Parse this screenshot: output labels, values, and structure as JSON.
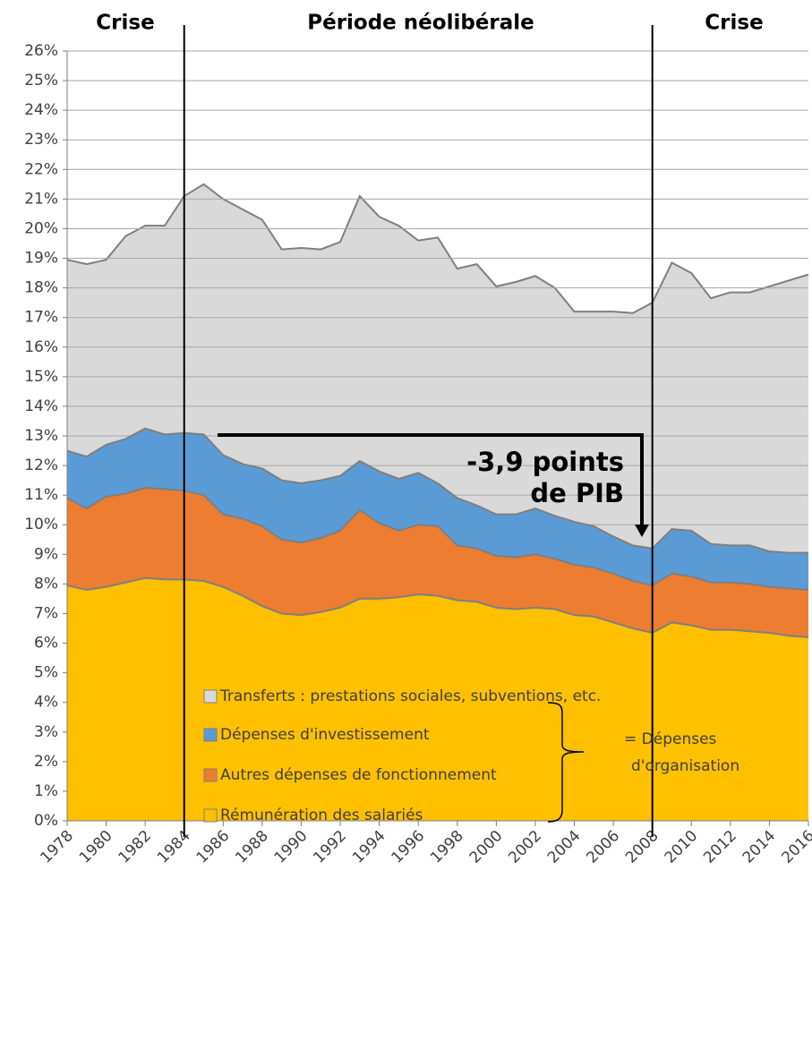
{
  "chart_data": {
    "type": "stacked_area",
    "x": [
      1978,
      1979,
      1980,
      1981,
      1982,
      1983,
      1984,
      1985,
      1986,
      1987,
      1988,
      1989,
      1990,
      1991,
      1992,
      1993,
      1994,
      1995,
      1996,
      1997,
      1998,
      1999,
      2000,
      2001,
      2002,
      2003,
      2004,
      2005,
      2006,
      2007,
      2008,
      2009,
      2010,
      2011,
      2012,
      2013,
      2014,
      2015,
      2016
    ],
    "series": [
      {
        "name": "Rémunération des salariés",
        "color": "#ffc000",
        "values": [
          7.95,
          7.8,
          7.9,
          8.05,
          8.2,
          8.15,
          8.15,
          8.1,
          7.9,
          7.6,
          7.25,
          7.0,
          6.95,
          7.05,
          7.2,
          7.5,
          7.5,
          7.55,
          7.65,
          7.6,
          7.45,
          7.4,
          7.2,
          7.15,
          7.2,
          7.15,
          6.95,
          6.9,
          6.7,
          6.5,
          6.35,
          6.7,
          6.6,
          6.45,
          6.45,
          6.4,
          6.35,
          6.25,
          6.2
        ]
      },
      {
        "name": "Autres dépenses de fonctionnement",
        "color": "#ed7d31",
        "values": [
          2.95,
          2.75,
          3.05,
          3.0,
          3.05,
          3.05,
          3.0,
          2.9,
          2.45,
          2.6,
          2.7,
          2.5,
          2.45,
          2.5,
          2.6,
          3.0,
          2.55,
          2.25,
          2.35,
          2.35,
          1.85,
          1.8,
          1.75,
          1.75,
          1.8,
          1.7,
          1.7,
          1.65,
          1.65,
          1.6,
          1.6,
          1.65,
          1.65,
          1.6,
          1.6,
          1.6,
          1.55,
          1.6,
          1.6
        ]
      },
      {
        "name": "Dépenses d'investissement",
        "color": "#5b9bd5",
        "values": [
          1.6,
          1.75,
          1.75,
          1.85,
          2.0,
          1.85,
          1.95,
          2.05,
          2.0,
          1.85,
          1.95,
          2.0,
          2.0,
          1.95,
          1.85,
          1.65,
          1.75,
          1.75,
          1.75,
          1.45,
          1.6,
          1.45,
          1.4,
          1.45,
          1.55,
          1.45,
          1.45,
          1.4,
          1.25,
          1.2,
          1.25,
          1.5,
          1.55,
          1.3,
          1.25,
          1.3,
          1.2,
          1.2,
          1.25
        ]
      },
      {
        "name": "Transferts : prestations sociales, subventions, etc.",
        "color": "#d9d9d9",
        "values": [
          6.45,
          6.5,
          6.25,
          6.85,
          6.85,
          7.05,
          8.0,
          8.45,
          8.65,
          8.6,
          8.4,
          7.8,
          7.95,
          7.8,
          7.9,
          8.95,
          8.6,
          8.55,
          7.85,
          8.3,
          7.75,
          8.15,
          7.7,
          7.85,
          7.85,
          7.7,
          7.1,
          7.25,
          7.6,
          7.85,
          8.3,
          9.0,
          8.7,
          8.3,
          8.55,
          8.55,
          8.95,
          9.2,
          9.4
        ]
      }
    ],
    "xlim": [
      1978,
      2016
    ],
    "xticks": [
      1978,
      1980,
      1982,
      1984,
      1986,
      1988,
      1990,
      1992,
      1994,
      1996,
      1998,
      2000,
      2002,
      2004,
      2006,
      2008,
      2010,
      2012,
      2014,
      2016
    ],
    "ylim": [
      0,
      26
    ],
    "yticks": [
      {
        "value": 0,
        "label": "0%"
      },
      {
        "value": 1,
        "label": "1%"
      },
      {
        "value": 2,
        "label": "2%"
      },
      {
        "value": 3,
        "label": "3%"
      },
      {
        "value": 4,
        "label": "4%"
      },
      {
        "value": 5,
        "label": "5%"
      },
      {
        "value": 6,
        "label": "6%"
      },
      {
        "value": 7,
        "label": "7%"
      },
      {
        "value": 8,
        "label": "8%"
      },
      {
        "value": 9,
        "label": "9%"
      },
      {
        "value": 10,
        "label": "10%"
      },
      {
        "value": 11,
        "label": "11%"
      },
      {
        "value": 12,
        "label": "12%"
      },
      {
        "value": 13,
        "label": "13%"
      },
      {
        "value": 14,
        "label": "14%"
      },
      {
        "value": 15,
        "label": "15%"
      },
      {
        "value": 16,
        "label": "16%"
      },
      {
        "value": 17,
        "label": "17%"
      },
      {
        "value": 18,
        "label": "18%"
      },
      {
        "value": 19,
        "label": "19%"
      },
      {
        "value": 20,
        "label": "20%"
      },
      {
        "value": 21,
        "label": "21%"
      },
      {
        "value": 22,
        "label": "22%"
      },
      {
        "value": 23,
        "label": "23%"
      },
      {
        "value": 24,
        "label": "24%"
      },
      {
        "value": 25,
        "label": "25%"
      },
      {
        "value": 26,
        "label": "26%"
      }
    ],
    "grid": true,
    "vlines": [
      1984,
      2008
    ],
    "period_labels": [
      "Crise",
      "Période néolibérale",
      "Crise"
    ],
    "annotation": [
      "-3,9 points",
      "de PIB"
    ],
    "brace_label": [
      "= Dépenses",
      "d'organisation"
    ]
  }
}
